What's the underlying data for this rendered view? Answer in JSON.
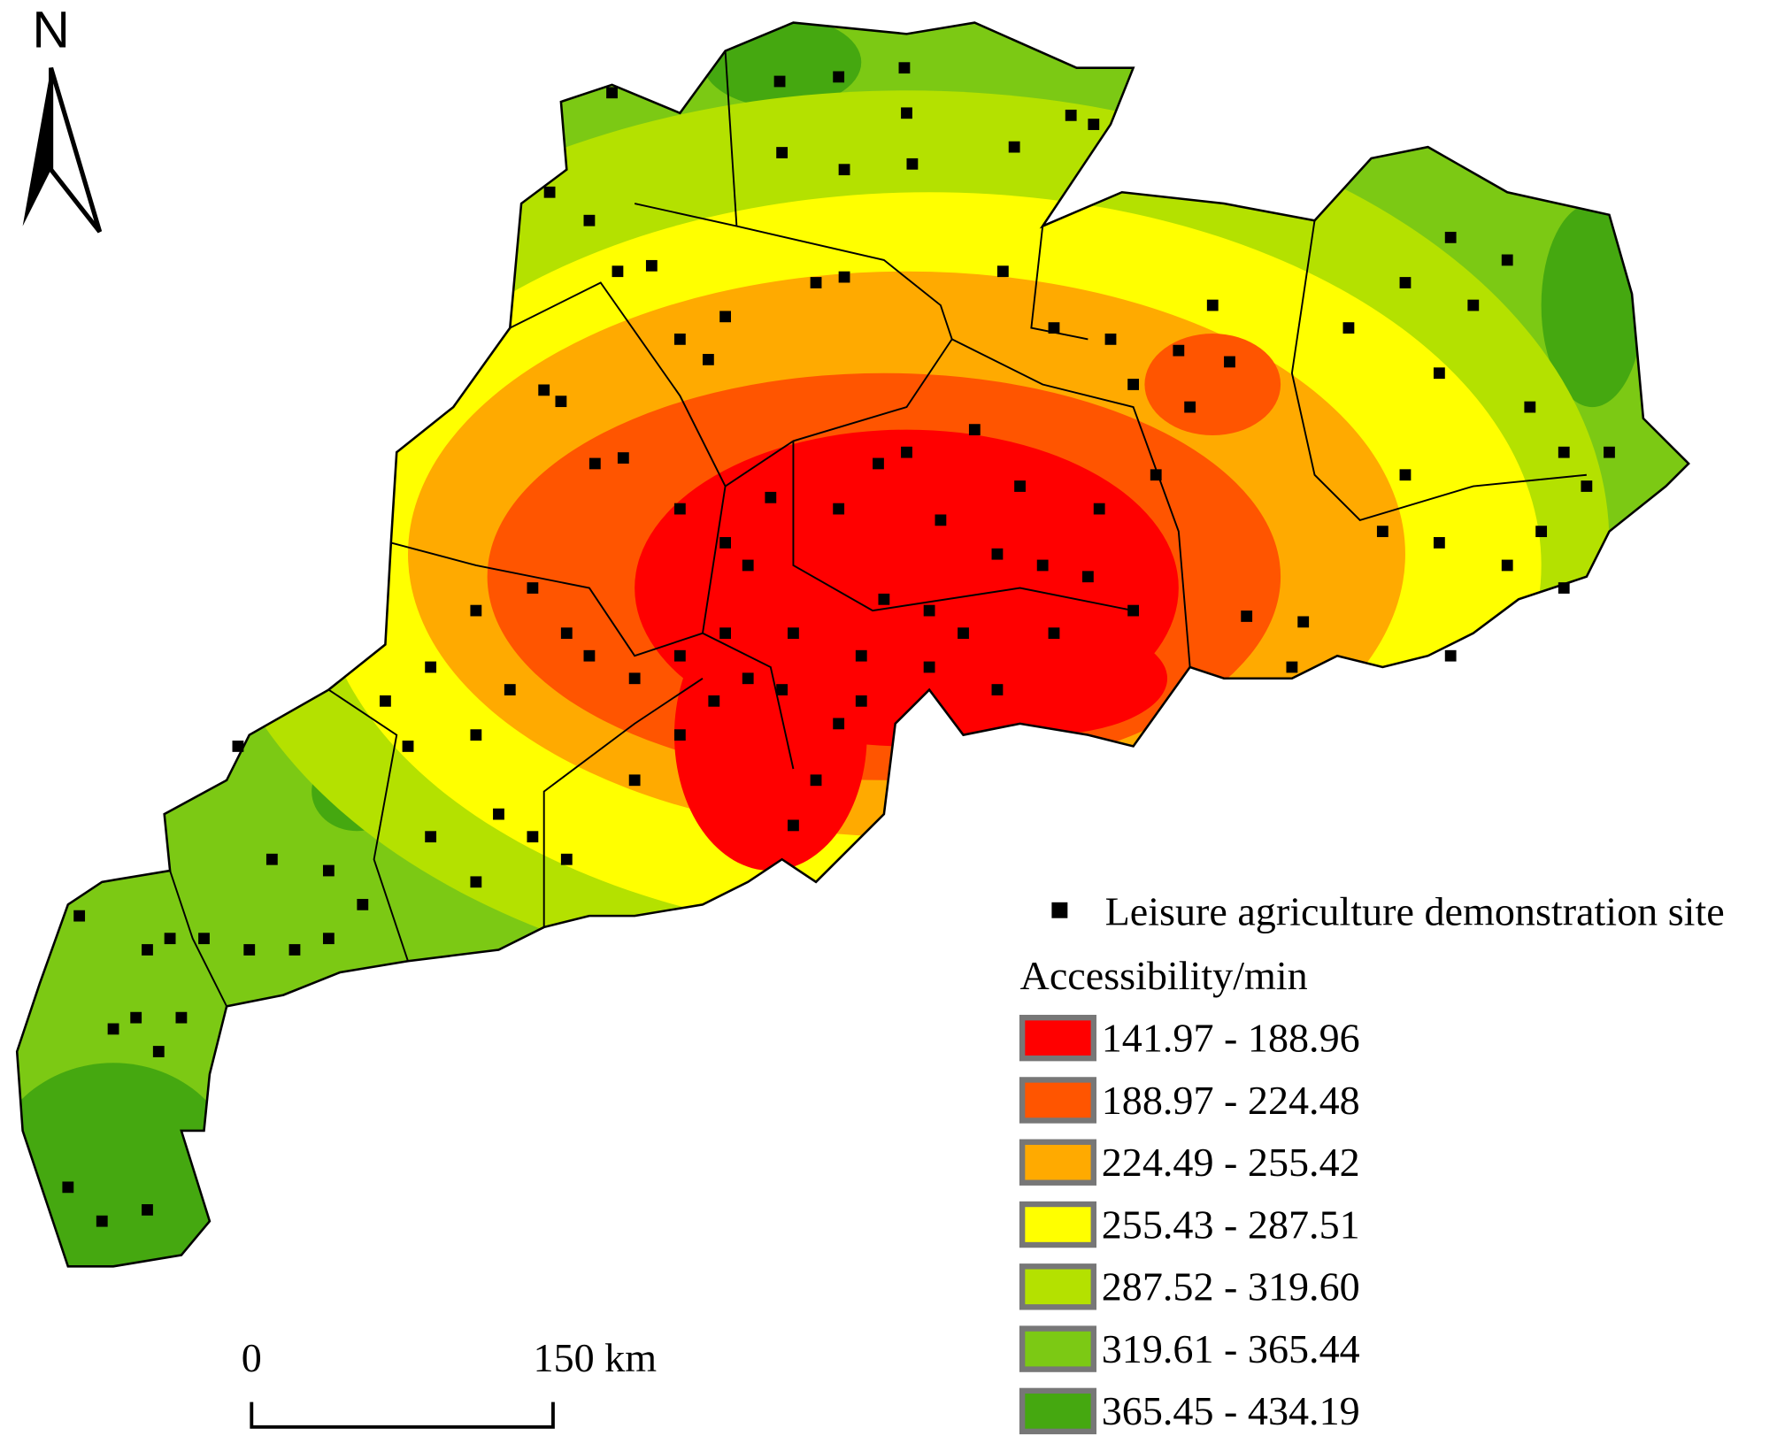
{
  "north_label": "N",
  "legend": {
    "point_label": "Leisure agriculture demonstration site",
    "title": "Accessibility/min",
    "classes": [
      {
        "label": "141.97 - 188.96",
        "color": "#ff0000"
      },
      {
        "label": "188.97 - 224.48",
        "color": "#ff5500"
      },
      {
        "label": "224.49 - 255.42",
        "color": "#ffaa00"
      },
      {
        "label": "255.43 - 287.51",
        "color": "#ffff00"
      },
      {
        "label": "287.52 - 319.60",
        "color": "#b4e100"
      },
      {
        "label": "319.61 - 365.44",
        "color": "#7cc914"
      },
      {
        "label": "365.45 - 434.19",
        "color": "#45a810"
      }
    ]
  },
  "scale_bar": {
    "start_label": "0",
    "end_label": "150 km"
  }
}
